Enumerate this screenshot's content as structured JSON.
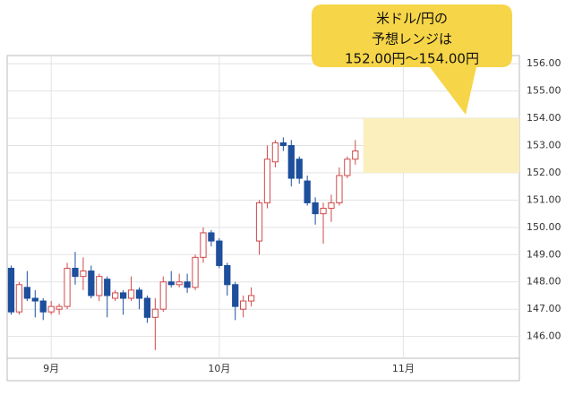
{
  "chart_data": {
    "type": "candlestick",
    "annotation": {
      "lines": [
        "米ドル/円の",
        "予想レンジは",
        "152.00円～154.00円"
      ],
      "range": [
        152,
        154
      ],
      "color": "#fbefbd"
    },
    "categories": [
      null,
      null,
      null,
      null,
      null,
      "9月",
      null,
      null,
      null,
      null,
      null,
      null,
      null,
      null,
      null,
      null,
      null,
      null,
      null,
      null,
      null,
      null,
      null,
      null,
      null,
      null,
      "10月",
      null,
      null,
      null,
      null,
      null,
      null,
      null,
      null,
      null,
      null,
      null,
      null,
      null,
      null,
      null,
      null,
      null,
      null,
      null,
      null,
      null,
      null,
      "11月",
      null,
      null,
      null,
      null,
      null,
      null,
      null,
      null,
      null,
      null,
      null,
      null,
      null,
      null
    ],
    "open": [
      148.5,
      146.9,
      147.8,
      147.4,
      147.3,
      146.9,
      147.0,
      147.1,
      148.5,
      148.2,
      148.4,
      147.5,
      148.1,
      147.4,
      147.6,
      147.4,
      147.7,
      147.4,
      146.7,
      147.0,
      148.0,
      147.9,
      148.0,
      147.8,
      148.9,
      149.8,
      149.5,
      148.6,
      147.9,
      147.0,
      147.3,
      149.5,
      150.9,
      152.4,
      153.1,
      153.0,
      152.5,
      151.7,
      150.9,
      150.5,
      150.7,
      150.9,
      151.9,
      152.5,
      null,
      null,
      null,
      null,
      null,
      null,
      null,
      null,
      null,
      null,
      null,
      null,
      null,
      null,
      null,
      null,
      null,
      null,
      null,
      null
    ],
    "high": [
      148.6,
      148.0,
      148.4,
      147.7,
      147.4,
      147.3,
      147.2,
      148.7,
      149.1,
      148.9,
      148.6,
      148.3,
      148.2,
      147.7,
      147.7,
      148.2,
      147.8,
      147.5,
      147.4,
      148.2,
      148.4,
      148.3,
      148.3,
      149.0,
      150.0,
      149.9,
      149.6,
      148.7,
      148.0,
      147.5,
      147.8,
      151.0,
      153.0,
      153.2,
      153.3,
      153.2,
      152.6,
      151.9,
      151.1,
      150.9,
      151.2,
      152.2,
      152.6,
      153.2,
      null,
      null,
      null,
      null,
      null,
      null,
      null,
      null,
      null,
      null,
      null,
      null,
      null,
      null,
      null,
      null,
      null,
      null,
      null,
      null
    ],
    "low": [
      146.8,
      146.8,
      147.3,
      146.7,
      146.6,
      146.8,
      146.8,
      147.0,
      147.9,
      147.7,
      147.4,
      147.3,
      146.7,
      147.3,
      146.8,
      147.3,
      147.0,
      146.5,
      145.5,
      146.9,
      147.8,
      147.8,
      147.6,
      147.7,
      148.7,
      149.3,
      148.5,
      147.5,
      146.6,
      146.7,
      147.1,
      149.0,
      150.7,
      152.2,
      152.8,
      151.5,
      151.6,
      150.8,
      150.1,
      149.4,
      150.2,
      150.8,
      151.8,
      152.3,
      null,
      null,
      null,
      null,
      null,
      null,
      null,
      null,
      null,
      null,
      null,
      null,
      null,
      null,
      null,
      null,
      null,
      null,
      null,
      null
    ],
    "close": [
      146.9,
      147.9,
      147.4,
      147.3,
      146.9,
      147.1,
      147.1,
      148.5,
      148.2,
      148.4,
      147.5,
      148.2,
      147.5,
      147.6,
      147.4,
      147.7,
      147.4,
      146.7,
      147.0,
      148.0,
      147.9,
      148.0,
      147.8,
      148.9,
      149.8,
      149.5,
      148.6,
      147.9,
      147.1,
      147.3,
      147.5,
      150.9,
      152.5,
      153.1,
      153.0,
      151.8,
      151.8,
      150.9,
      150.5,
      150.7,
      150.9,
      151.9,
      152.5,
      152.8,
      null,
      null,
      null,
      null,
      null,
      null,
      null,
      null,
      null,
      null,
      null,
      null,
      null,
      null,
      null,
      null,
      null,
      null,
      null,
      null
    ],
    "up_color": "#d0494a",
    "down_color": "#1d4f9c",
    "ylim": [
      145.2,
      156.3
    ],
    "yticks": [
      {
        "value": 146,
        "label": "146.00"
      },
      {
        "value": 147,
        "label": "147.00"
      },
      {
        "value": 148,
        "label": "148.00"
      },
      {
        "value": 149,
        "label": "149.00"
      },
      {
        "value": 150,
        "label": "150.00"
      },
      {
        "value": 151,
        "label": "151.00"
      },
      {
        "value": 152,
        "label": "152.00"
      },
      {
        "value": 153,
        "label": "153.00"
      },
      {
        "value": 154,
        "label": "154.00"
      },
      {
        "value": 155,
        "label": "155.00"
      },
      {
        "value": 156,
        "label": "156.00"
      }
    ],
    "grid": true
  }
}
